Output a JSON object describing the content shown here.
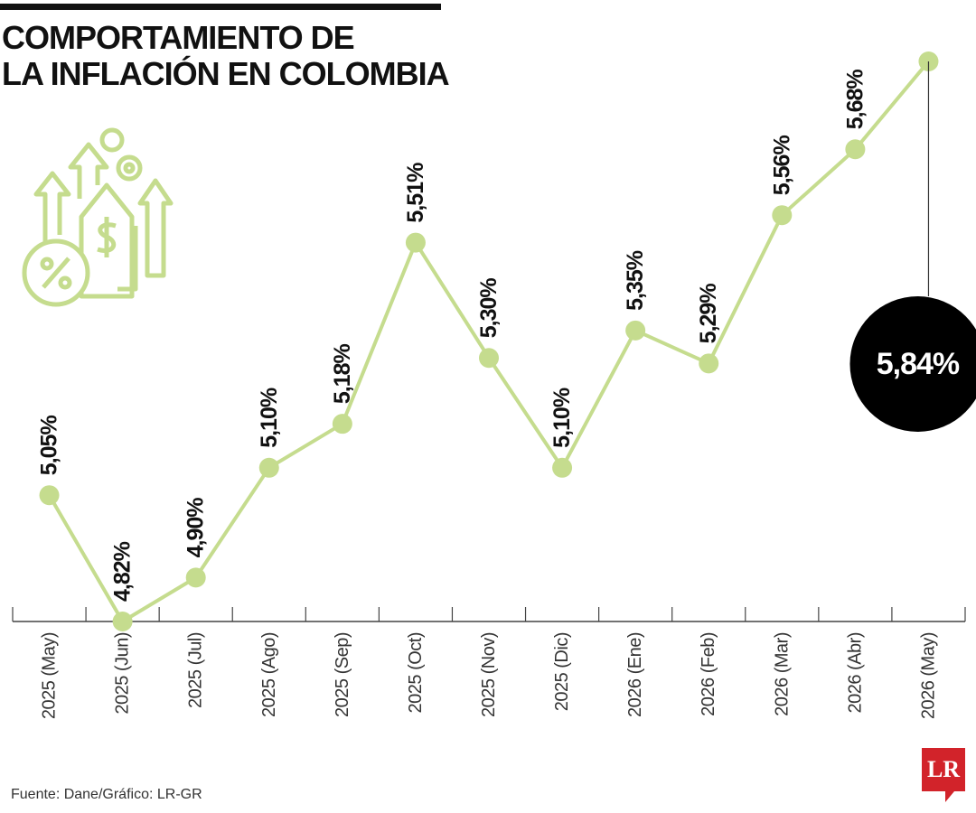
{
  "chart_data": {
    "type": "line",
    "title": [
      "COMPORTAMIENTO DE",
      "LA INFLACIÓN EN COLOMBIA"
    ],
    "categories": [
      "2025 (May)",
      "2025 (Jun)",
      "2025 (Jul)",
      "2025 (Ago)",
      "2025 (Sep)",
      "2025 (Oct)",
      "2025 (Nov)",
      "2025 (Dic)",
      "2026 (Ene)",
      "2026 (Feb)",
      "2026 (Mar)",
      "2026 (Abr)",
      "2026 (May)"
    ],
    "series": [
      {
        "name": "Inflación",
        "color": "#c5dc8e",
        "values": [
          5.05,
          4.82,
          4.9,
          5.1,
          5.18,
          5.51,
          5.3,
          5.1,
          5.35,
          5.29,
          5.56,
          5.68,
          5.84
        ],
        "value_labels": [
          "5,05%",
          "4,82%",
          "4,90%",
          "5,10%",
          "5,18%",
          "5,51%",
          "5,30%",
          "5,10%",
          "5,35%",
          "5,29%",
          "5,56%",
          "5,68%",
          "5,84%"
        ]
      }
    ],
    "source": "Fuente: Dane/Gráfico: LR-GR",
    "logo": "LR"
  }
}
